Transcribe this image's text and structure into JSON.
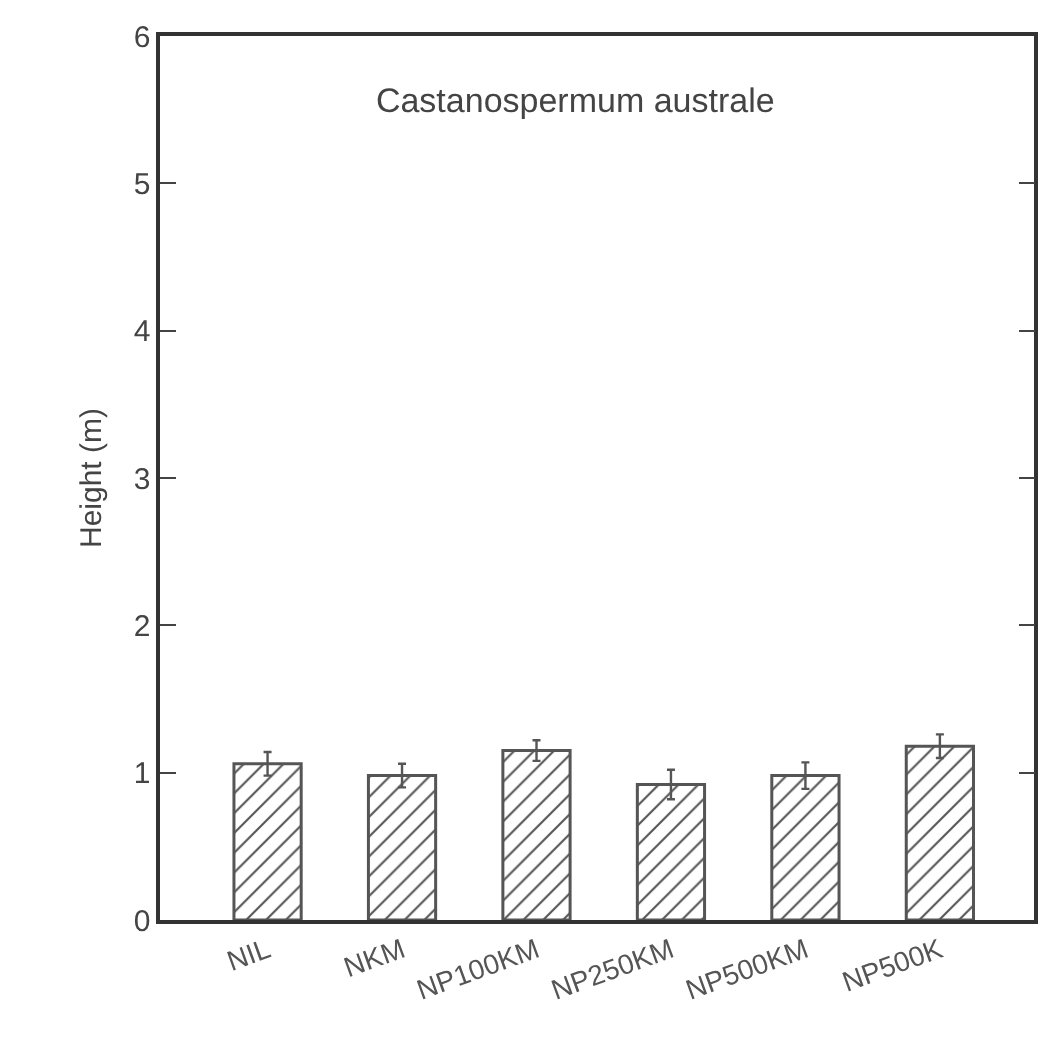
{
  "chart_data": {
    "type": "bar",
    "title": "Castanospermum australe",
    "ylabel": "Height (m)",
    "categories": [
      "NIL",
      "NKM",
      "NP100KM",
      "NP250KM",
      "NP500KM",
      "NP500K"
    ],
    "values": [
      1.06,
      0.98,
      1.15,
      0.92,
      0.98,
      1.18
    ],
    "errors": [
      0.08,
      0.08,
      0.07,
      0.1,
      0.09,
      0.08
    ],
    "color": "#555555",
    "ylim": [
      0,
      6
    ],
    "yticks": [
      0,
      1,
      2,
      3,
      4,
      5,
      6
    ],
    "grid": false
  }
}
